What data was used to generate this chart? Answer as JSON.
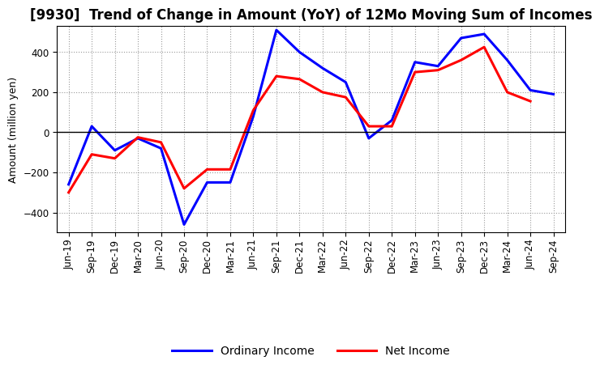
{
  "title": "[9930]  Trend of Change in Amount (YoY) of 12Mo Moving Sum of Incomes",
  "ylabel": "Amount (million yen)",
  "x_labels": [
    "Jun-19",
    "Sep-19",
    "Dec-19",
    "Mar-20",
    "Jun-20",
    "Sep-20",
    "Dec-20",
    "Mar-21",
    "Jun-21",
    "Sep-21",
    "Dec-21",
    "Mar-22",
    "Jun-22",
    "Sep-22",
    "Dec-22",
    "Mar-23",
    "Jun-23",
    "Sep-23",
    "Dec-23",
    "Mar-24",
    "Jun-24",
    "Sep-24"
  ],
  "ordinary_income": [
    -260,
    30,
    -90,
    -30,
    -80,
    -460,
    -250,
    -250,
    80,
    510,
    400,
    320,
    250,
    -30,
    60,
    350,
    330,
    470,
    490,
    360,
    210,
    190
  ],
  "net_income": [
    -300,
    -110,
    -130,
    -25,
    -50,
    -280,
    -185,
    -185,
    110,
    280,
    265,
    200,
    175,
    30,
    30,
    300,
    310,
    360,
    425,
    200,
    155,
    null
  ],
  "ordinary_color": "#0000FF",
  "net_color": "#FF0000",
  "ylim": [
    -500,
    530
  ],
  "yticks": [
    -400,
    -200,
    0,
    200,
    400
  ],
  "background_color": "#FFFFFF",
  "plot_bg_color": "#FFFFFF",
  "grid_color": "#999999",
  "title_fontsize": 12,
  "legend_fontsize": 10,
  "axis_label_fontsize": 9,
  "tick_fontsize": 8.5,
  "linewidth": 2.2
}
